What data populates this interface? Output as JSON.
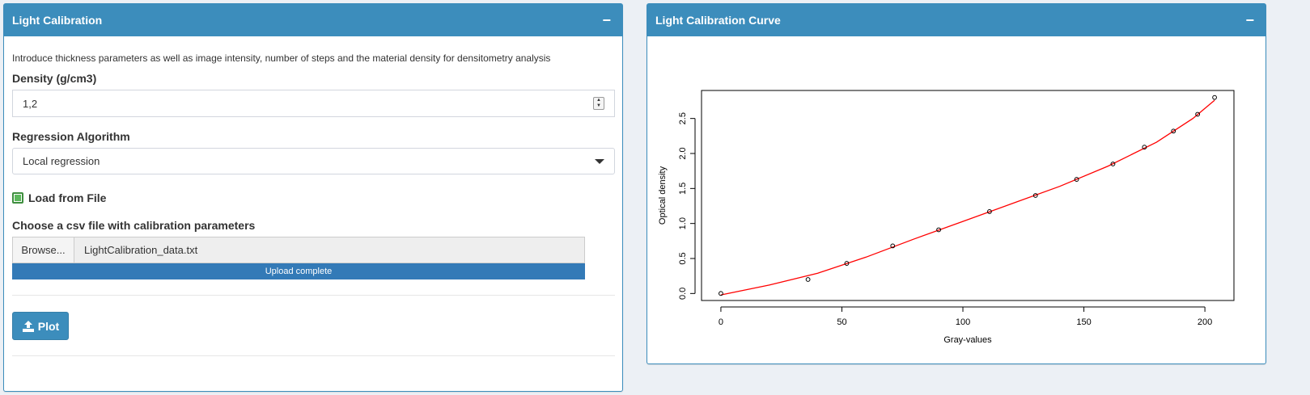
{
  "left_panel": {
    "title": "Light Calibration",
    "collapse": "−",
    "intro": "Introduce thickness parameters as well as image intensity, number of steps and the material density for densitometry analysis",
    "density_label": "Density (g/cm3)",
    "density_value": "1,2",
    "regression_label": "Regression Algorithm",
    "regression_value": "Local regression",
    "load_from_file_label": "Load from File",
    "load_from_file_checked": true,
    "file_label": "Choose a csv file with calibration parameters",
    "browse_label": "Browse...",
    "file_name": "LightCalibration_data.txt",
    "upload_status": "Upload complete",
    "upload_progress": 1.0,
    "plot_button": "Plot"
  },
  "right_panel": {
    "title": "Light Calibration Curve",
    "collapse": "−"
  },
  "colors": {
    "header": "#3c8dbc",
    "progress": "#337ab7",
    "curve": "#ff0000",
    "checkbox": "#5cb85c"
  },
  "chart_data": {
    "type": "scatter",
    "title": "",
    "xlabel": "Gray-values",
    "ylabel": "Optical density",
    "xlim": [
      -8,
      212
    ],
    "ylim": [
      -0.1,
      2.9
    ],
    "xticks": [
      0,
      50,
      100,
      150,
      200
    ],
    "yticks": [
      0.0,
      0.5,
      1.0,
      1.5,
      2.0,
      2.5
    ],
    "xtick_labels": [
      "0",
      "50",
      "100",
      "150",
      "200"
    ],
    "ytick_labels": [
      "0.0",
      "0.5",
      "1.0",
      "1.5",
      "2.0",
      "2.5"
    ],
    "points": [
      {
        "x": 0,
        "y": 0.0
      },
      {
        "x": 36,
        "y": 0.2
      },
      {
        "x": 52,
        "y": 0.43
      },
      {
        "x": 71,
        "y": 0.68
      },
      {
        "x": 90,
        "y": 0.91
      },
      {
        "x": 111,
        "y": 1.17
      },
      {
        "x": 130,
        "y": 1.4
      },
      {
        "x": 147,
        "y": 1.63
      },
      {
        "x": 162,
        "y": 1.85
      },
      {
        "x": 175,
        "y": 2.09
      },
      {
        "x": 187,
        "y": 2.32
      },
      {
        "x": 197,
        "y": 2.56
      },
      {
        "x": 204,
        "y": 2.8
      }
    ],
    "curve": [
      {
        "x": 0,
        "y": -0.02
      },
      {
        "x": 20,
        "y": 0.12
      },
      {
        "x": 40,
        "y": 0.29
      },
      {
        "x": 60,
        "y": 0.52
      },
      {
        "x": 80,
        "y": 0.78
      },
      {
        "x": 100,
        "y": 1.03
      },
      {
        "x": 120,
        "y": 1.28
      },
      {
        "x": 140,
        "y": 1.53
      },
      {
        "x": 160,
        "y": 1.82
      },
      {
        "x": 180,
        "y": 2.16
      },
      {
        "x": 195,
        "y": 2.5
      },
      {
        "x": 204,
        "y": 2.76
      }
    ]
  }
}
